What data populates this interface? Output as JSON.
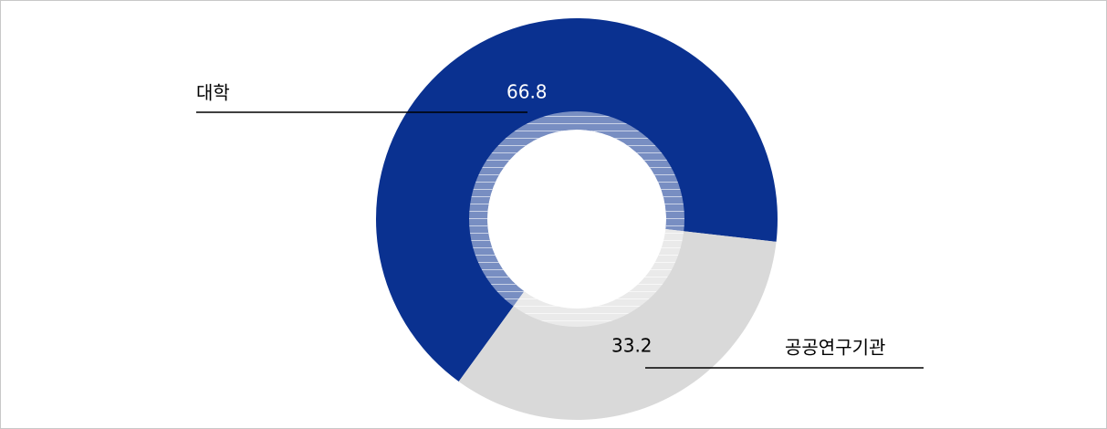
{
  "chart_data": {
    "type": "pie",
    "categories": [
      "대학",
      "공공연구기관"
    ],
    "values": [
      66.8,
      33.2
    ],
    "colors": [
      "#0a3190",
      "#d9d9d9"
    ]
  }
}
